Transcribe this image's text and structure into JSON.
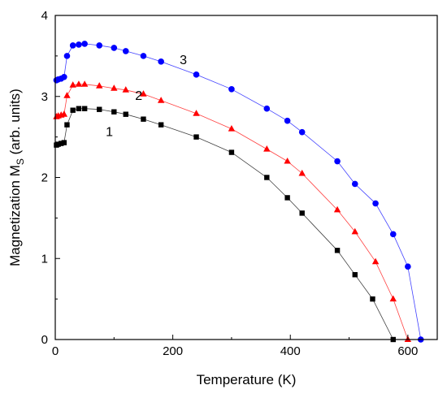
{
  "chart_data": {
    "type": "scatter",
    "xlabel": "Temperature (K)",
    "ylabel_main": "Magnetization M",
    "ylabel_sub": "S",
    "ylabel_tail": " (arb. units)",
    "xlim": [
      0,
      650
    ],
    "ylim": [
      0,
      4
    ],
    "xticks": [
      0,
      200,
      400,
      600
    ],
    "yticks": [
      0,
      1,
      2,
      3,
      4
    ],
    "grid": false,
    "series": [
      {
        "name": "1",
        "color": "#000000",
        "marker": "square",
        "x": [
          2,
          5,
          10,
          15,
          20,
          30,
          40,
          50,
          75,
          100,
          120,
          150,
          180,
          240,
          300,
          360,
          395,
          420,
          480,
          510,
          540,
          575
        ],
        "y": [
          2.4,
          2.41,
          2.42,
          2.43,
          2.65,
          2.83,
          2.85,
          2.85,
          2.84,
          2.81,
          2.78,
          2.72,
          2.65,
          2.5,
          2.31,
          2.0,
          1.75,
          1.56,
          1.1,
          0.8,
          0.5,
          0.0
        ]
      },
      {
        "name": "2",
        "color": "#ff0000",
        "marker": "triangle",
        "x": [
          2,
          5,
          10,
          15,
          20,
          30,
          40,
          50,
          75,
          100,
          120,
          150,
          180,
          240,
          300,
          360,
          395,
          420,
          480,
          510,
          545,
          575,
          600
        ],
        "y": [
          2.75,
          2.76,
          2.77,
          2.78,
          3.01,
          3.14,
          3.15,
          3.15,
          3.13,
          3.1,
          3.08,
          3.03,
          2.95,
          2.79,
          2.6,
          2.35,
          2.2,
          2.05,
          1.6,
          1.33,
          0.96,
          0.5,
          0.0
        ]
      },
      {
        "name": "3",
        "color": "#0000ff",
        "marker": "circle",
        "x": [
          2,
          5,
          10,
          15,
          20,
          30,
          40,
          50,
          75,
          100,
          120,
          150,
          180,
          240,
          300,
          360,
          395,
          420,
          480,
          510,
          545,
          575,
          600,
          622
        ],
        "y": [
          3.2,
          3.21,
          3.22,
          3.24,
          3.5,
          3.63,
          3.64,
          3.65,
          3.63,
          3.6,
          3.56,
          3.5,
          3.43,
          3.27,
          3.09,
          2.85,
          2.7,
          2.56,
          2.2,
          1.92,
          1.68,
          1.3,
          0.9,
          0.0
        ]
      }
    ],
    "annotations": [
      {
        "text": "1",
        "x": 92,
        "y": 2.57
      },
      {
        "text": "2",
        "x": 142,
        "y": 3.02
      },
      {
        "text": "3",
        "x": 218,
        "y": 3.46
      }
    ]
  }
}
